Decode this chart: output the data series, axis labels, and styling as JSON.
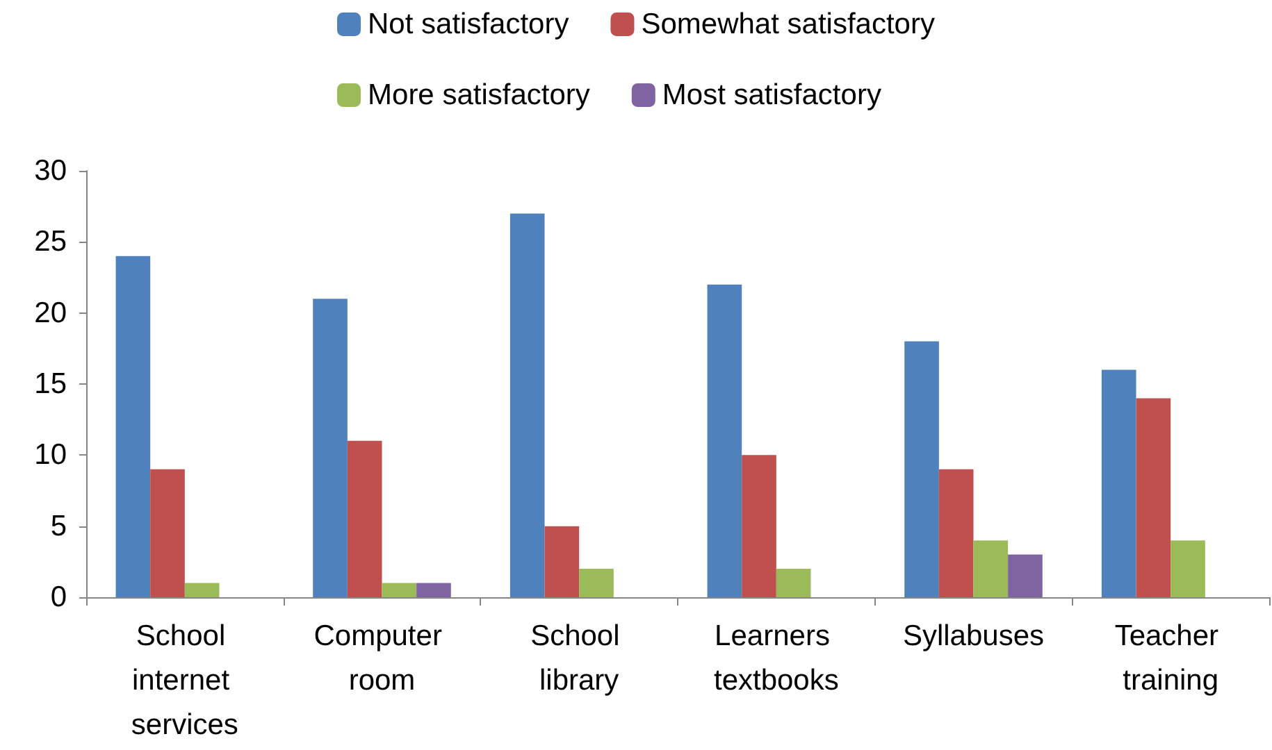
{
  "chart_data": {
    "type": "bar",
    "categories": [
      "School internet services",
      "Computer room",
      "School library",
      "Learners textbooks",
      "Syllabuses",
      "Teacher training"
    ],
    "series": [
      {
        "name": "Not satisfactory",
        "color": "#4f81bd",
        "values": [
          24,
          21,
          27,
          22,
          18,
          16
        ]
      },
      {
        "name": "Somewhat satisfactory",
        "color": "#c0504d",
        "values": [
          9,
          11,
          5,
          10,
          9,
          14
        ]
      },
      {
        "name": "More satisfactory",
        "color": "#9bbb59",
        "values": [
          1,
          1,
          2,
          2,
          4,
          4
        ]
      },
      {
        "name": "Most satisfactory",
        "color": "#8064a2",
        "values": [
          0,
          1,
          0,
          0,
          3,
          0
        ]
      }
    ],
    "ylim": [
      0,
      30
    ],
    "yticks": [
      0,
      5,
      10,
      15,
      20,
      25,
      30
    ],
    "grid": false,
    "legend": "top"
  }
}
